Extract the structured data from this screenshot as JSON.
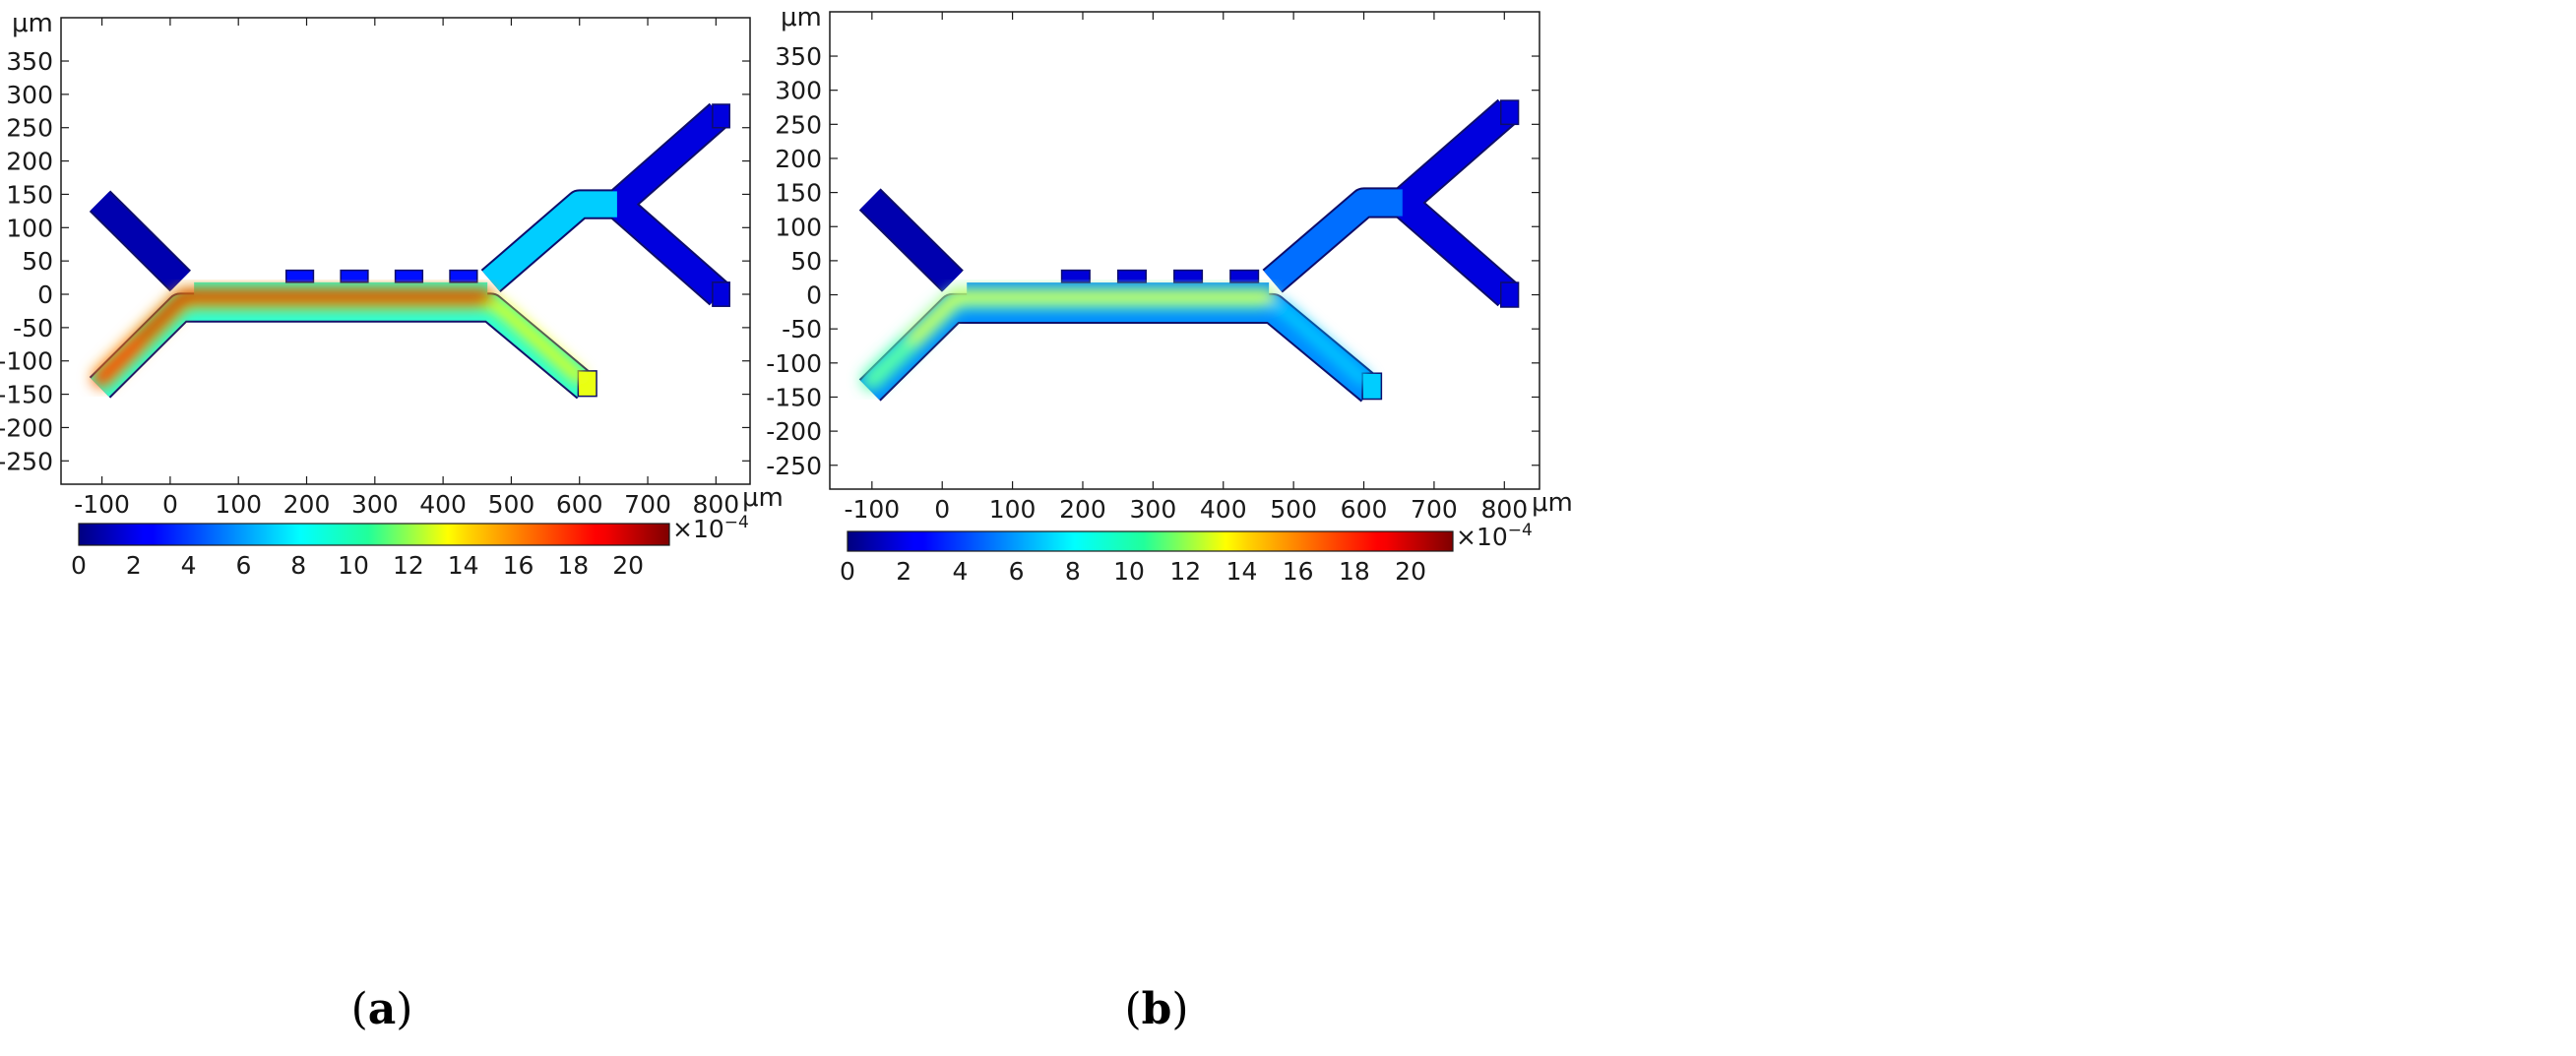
{
  "chart_data": [
    {
      "type": "heatmap",
      "panel": "a",
      "caption": {
        "open": "(",
        "letter": "a",
        "close": ")"
      },
      "x_unit": "μm",
      "y_unit": "μm",
      "xlim": [
        -160,
        850
      ],
      "ylim": [
        -285,
        415
      ],
      "x_ticks": [
        -100,
        0,
        100,
        200,
        300,
        400,
        500,
        600,
        700,
        800
      ],
      "y_ticks": [
        -250,
        -200,
        -150,
        -100,
        -50,
        0,
        50,
        100,
        150,
        200,
        250,
        300,
        350
      ],
      "colorbar": {
        "min": 0,
        "max": 21.5,
        "ticks": [
          0,
          2,
          4,
          6,
          8,
          10,
          12,
          14,
          16,
          18,
          20
        ],
        "multiplier": "×10",
        "exponent": "−4",
        "colormap": "jet"
      },
      "field": {
        "channel_core": 20,
        "left_lower_inlet": 19,
        "left_upper_inlet": 1,
        "lower_right_outlet": 13,
        "split_region": 7,
        "upper_right_outlets": 2
      }
    },
    {
      "type": "heatmap",
      "panel": "b",
      "caption": {
        "open": "(",
        "letter": "b",
        "close": ")"
      },
      "x_unit": "μm",
      "y_unit": "μm",
      "xlim": [
        -160,
        850
      ],
      "ylim": [
        -285,
        415
      ],
      "x_ticks": [
        -100,
        0,
        100,
        200,
        300,
        400,
        500,
        600,
        700,
        800
      ],
      "y_ticks": [
        -250,
        -200,
        -150,
        -100,
        -50,
        0,
        50,
        100,
        150,
        200,
        250,
        300,
        350
      ],
      "colorbar": {
        "min": 0,
        "max": 21.5,
        "ticks": [
          0,
          2,
          4,
          6,
          8,
          10,
          12,
          14,
          16,
          18,
          20
        ],
        "multiplier": "×10",
        "exponent": "−4",
        "colormap": "jet"
      },
      "field": {
        "channel_core": 12.5,
        "left_lower_inlet": 10,
        "left_upper_inlet": 1,
        "lower_right_outlet": 7,
        "split_region": 5,
        "upper_right_outlets": 2
      }
    }
  ]
}
